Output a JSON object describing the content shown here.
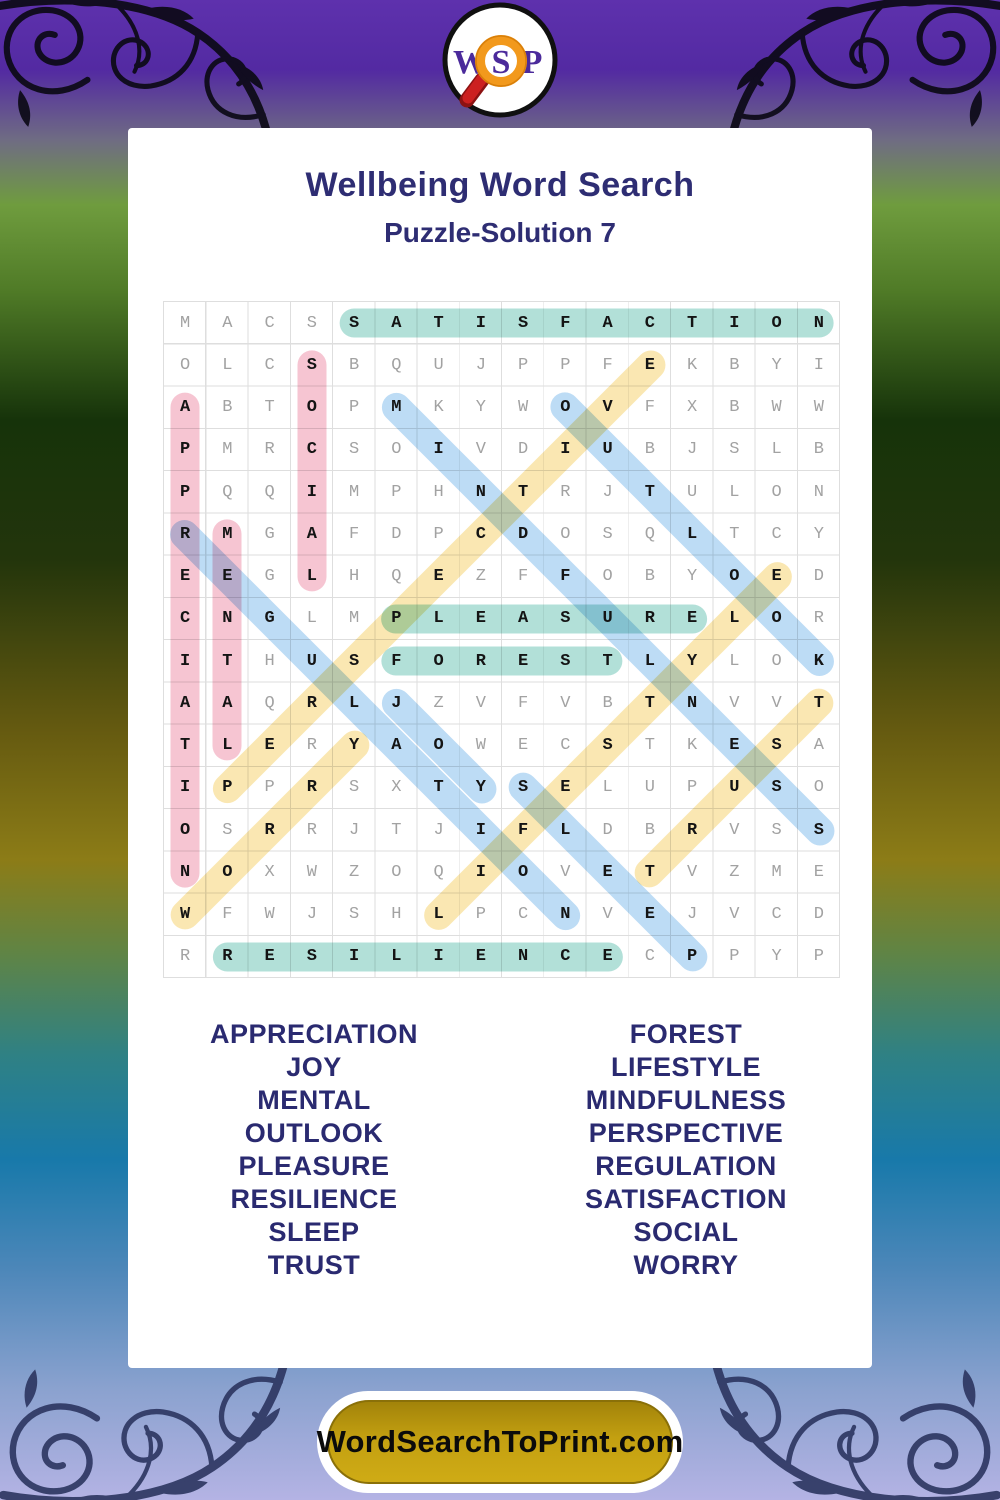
{
  "logo": {
    "w": "W",
    "s": "S",
    "p": "P"
  },
  "header": {
    "title": "Wellbeing Word Search",
    "subtitle": "Puzzle-Solution 7"
  },
  "grid": {
    "size": 16,
    "rows": [
      "MACSSATISFACTION",
      "OLCSBQUJPPFEKBYI",
      "ABTOPMKYWOVFXBWW",
      "PMRCSOIVDIUBJSLB",
      "PQQIMPHNTRJTULON",
      "RMGAFDPCDOSQLTCY",
      "EEGLHQEZFFOBYOED",
      "CNGLMPLEASURELOR",
      "ITHUSFORESTLYLOK",
      "AAQRLJZVFVBTNVVT",
      "TLERYAOWECSTKESA",
      "IPPRSXTYSELUPUSO",
      "OSRRJTJIFLDBRVSS",
      "NOXWZOQIOVETVZME",
      "WFWJSHLPCNVEJVCD",
      "RRESILIENCECPPYP"
    ],
    "placements": [
      {
        "word": "SATISFACTION",
        "row": 1,
        "col": 5,
        "dir": "H",
        "color": "teal"
      },
      {
        "word": "PLEASURE",
        "row": 8,
        "col": 6,
        "dir": "H",
        "color": "teal"
      },
      {
        "word": "FOREST",
        "row": 9,
        "col": 6,
        "dir": "H",
        "color": "teal"
      },
      {
        "word": "RESILIENCE",
        "row": 16,
        "col": 2,
        "dir": "H",
        "color": "teal"
      },
      {
        "word": "APPRECIATION",
        "row": 3,
        "col": 1,
        "dir": "V",
        "color": "pink"
      },
      {
        "word": "SOCIAL",
        "row": 2,
        "col": 4,
        "dir": "V",
        "color": "pink"
      },
      {
        "word": "MENTAL",
        "row": 6,
        "col": 2,
        "dir": "V",
        "color": "pink"
      },
      {
        "word": "MINDFULNESS",
        "row": 3,
        "col": 6,
        "dir": "D",
        "color": "blue"
      },
      {
        "word": "OUTLOOK",
        "row": 3,
        "col": 10,
        "dir": "D",
        "color": "blue"
      },
      {
        "word": "REGULATION",
        "row": 6,
        "col": 1,
        "dir": "D",
        "color": "blue"
      },
      {
        "word": "JOY",
        "row": 10,
        "col": 6,
        "dir": "D",
        "color": "blue"
      },
      {
        "word": "SLEEP",
        "row": 12,
        "col": 9,
        "dir": "D",
        "color": "blue"
      },
      {
        "word": "PERSPECTIVE",
        "row": 12,
        "col": 2,
        "dir": "U",
        "color": "yellow"
      },
      {
        "word": "WORRY",
        "row": 15,
        "col": 1,
        "dir": "U",
        "color": "yellow"
      },
      {
        "word": "LIFESTYLE",
        "row": 15,
        "col": 7,
        "dir": "U",
        "color": "yellow"
      },
      {
        "word": "TRUST",
        "row": 14,
        "col": 12,
        "dir": "U",
        "color": "yellow"
      }
    ],
    "highlight_colors": {
      "teal": "#b2e0d8",
      "pink": "#f6c5d2",
      "blue": "#bddcf5",
      "yellow": "#fae7b2"
    }
  },
  "word_list": {
    "left": [
      "APPRECIATION",
      "JOY",
      "MENTAL",
      "OUTLOOK",
      "PLEASURE",
      "RESILIENCE",
      "SLEEP",
      "TRUST"
    ],
    "right": [
      "FOREST",
      "LIFESTYLE",
      "MINDFULNESS",
      "PERSPECTIVE",
      "REGULATION",
      "SATISFACTION",
      "SOCIAL",
      "WORRY"
    ]
  },
  "footer": {
    "button_label": "WordSearchToPrint.com"
  },
  "colors": {
    "title_navy": "#2e2d73",
    "word_navy": "#2a2a70",
    "button_gold": "#c3a011",
    "logo_purple": "#4b2a9b",
    "magnifier_orange": "#f2991c",
    "magnifier_handle_red": "#cc2020"
  }
}
